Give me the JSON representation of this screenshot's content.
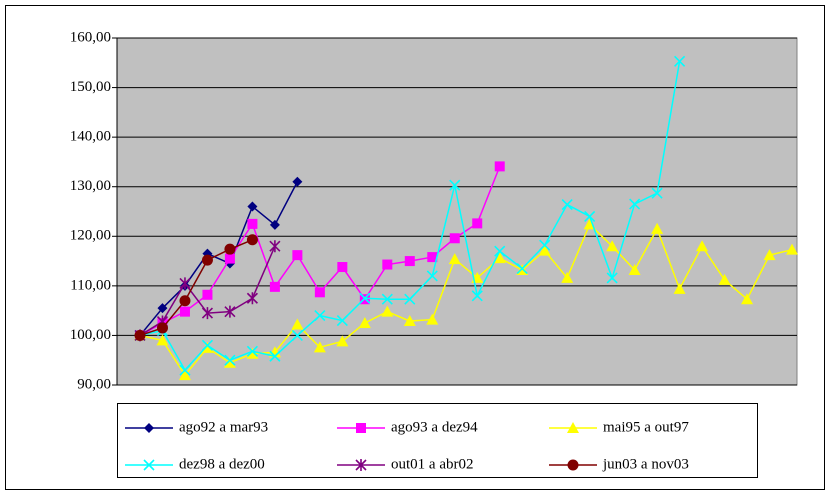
{
  "chart_data": {
    "type": "line",
    "categories": [
      null,
      null,
      null,
      null,
      null,
      null,
      null,
      null,
      null,
      null,
      null,
      null,
      null,
      null,
      null,
      null,
      null,
      null,
      null,
      null,
      null,
      null,
      null,
      null,
      null,
      null,
      null,
      null,
      null,
      null
    ],
    "ylim": [
      90,
      160
    ],
    "yticks": [
      {
        "value": 90,
        "label": "90,00"
      },
      {
        "value": 100,
        "label": "100,00"
      },
      {
        "value": 110,
        "label": "110,00"
      },
      {
        "value": 120,
        "label": "120,00"
      },
      {
        "value": 130,
        "label": "130,00"
      },
      {
        "value": 140,
        "label": "140,00"
      },
      {
        "value": 150,
        "label": "150,00"
      },
      {
        "value": 160,
        "label": "160,00"
      }
    ],
    "grid": true,
    "plot_background": "#c0c0c0",
    "legend": "bottom",
    "series": [
      {
        "name": "ago92 a mar93",
        "color": "#000080",
        "marker": "diamond",
        "values": [
          100,
          105.5,
          110,
          116.5,
          114.5,
          126,
          122.3,
          131,
          null,
          null,
          null,
          null,
          null,
          null,
          null,
          null,
          null,
          null,
          null,
          null,
          null,
          null,
          null,
          null,
          null,
          null,
          null,
          null,
          null,
          null
        ]
      },
      {
        "name": "ago93 a dez94",
        "color": "#ff00ff",
        "marker": "square",
        "values": [
          100,
          102.5,
          104.8,
          108.2,
          115.5,
          122.5,
          109.8,
          116.2,
          108.7,
          113.8,
          107.3,
          114.3,
          115,
          115.8,
          119.6,
          122.6,
          134.1,
          null,
          null,
          null,
          null,
          null,
          null,
          null,
          null,
          null,
          null,
          null,
          null,
          null
        ]
      },
      {
        "name": "mai95 a out97",
        "color": "#ffff00",
        "marker": "triangle",
        "values": [
          100,
          99,
          92,
          97.5,
          94.5,
          96.3,
          96.6,
          102.2,
          97.6,
          98.8,
          102.5,
          104.8,
          102.9,
          103.2,
          115.4,
          111.6,
          115.6,
          113.2,
          117.1,
          111.6,
          122.4,
          118,
          113.2,
          121.5,
          109.4,
          118,
          111.2,
          107.3,
          116.2,
          117.3
        ]
      },
      {
        "name": "dez98 a dez00",
        "color": "#00ffff",
        "marker": "x",
        "values": [
          100,
          101,
          93,
          98,
          95,
          96.8,
          95.8,
          100,
          104,
          103,
          107.5,
          107.3,
          107.3,
          112,
          130.3,
          108,
          117,
          113.5,
          118.2,
          126.4,
          124,
          111.6,
          126.5,
          128.7,
          155.3,
          null,
          null,
          null,
          null,
          null
        ]
      },
      {
        "name": "out01 a abr02",
        "color": "#800080",
        "marker": "star",
        "values": [
          100,
          102.8,
          110.5,
          104.5,
          104.8,
          107.5,
          118,
          null,
          null,
          null,
          null,
          null,
          null,
          null,
          null,
          null,
          null,
          null,
          null,
          null,
          null,
          null,
          null,
          null,
          null,
          null,
          null,
          null,
          null,
          null
        ]
      },
      {
        "name": "jun03 a nov03",
        "color": "#800000",
        "marker": "circle",
        "values": [
          100,
          101.5,
          107,
          115.2,
          117.4,
          119.3,
          null,
          null,
          null,
          null,
          null,
          null,
          null,
          null,
          null,
          null,
          null,
          null,
          null,
          null,
          null,
          null,
          null,
          null,
          null,
          null,
          null,
          null,
          null,
          null
        ]
      }
    ]
  }
}
